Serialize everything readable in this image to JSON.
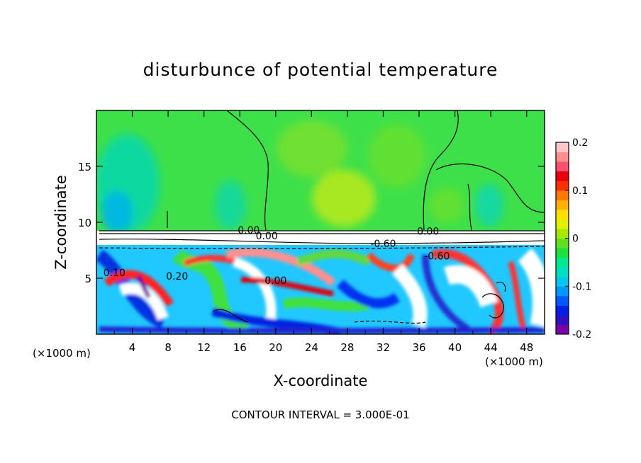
{
  "chart_data": {
    "type": "heatmap",
    "title": "disturbunce of potential temperature",
    "xlabel": "X-coordinate",
    "ylabel": "Z-coordinate",
    "x_unit_label": "(×1000 m)",
    "xlim": [
      0,
      50
    ],
    "ylim": [
      0,
      20
    ],
    "x_ticks": [
      "4",
      "8",
      "12",
      "16",
      "20",
      "24",
      "28",
      "32",
      "36",
      "40",
      "44",
      "48"
    ],
    "x_tick_values": [
      4,
      8,
      12,
      16,
      20,
      24,
      28,
      32,
      36,
      40,
      44,
      48
    ],
    "y_ticks": [
      "5",
      "10",
      "15"
    ],
    "y_tick_values": [
      5,
      10,
      15
    ],
    "colorbar": {
      "range": [
        -0.2,
        0.2
      ],
      "tick_labels": [
        "0.2",
        "0.1",
        "0",
        "-0.1",
        "-0.2"
      ],
      "tick_values": [
        0.2,
        0.1,
        0,
        -0.1,
        -0.2
      ],
      "colors": [
        "#7a00a8",
        "#3010c0",
        "#0020e8",
        "#0058ff",
        "#0098ff",
        "#00c8f0",
        "#00e0c0",
        "#00e890",
        "#20e040",
        "#60e020",
        "#a8e800",
        "#e0f000",
        "#ffe000",
        "#ffb000",
        "#ff7800",
        "#ff3000",
        "#e80010",
        "#ff5070",
        "#ff9090",
        "#ffc8c8"
      ]
    },
    "contour_labels": [
      {
        "text": "0.00",
        "x": 17,
        "z": 9.3
      },
      {
        "text": "0.00",
        "x": 19,
        "z": 8.8
      },
      {
        "text": "0.00",
        "x": 37,
        "z": 9.2
      },
      {
        "text": "-0.60",
        "x": 32,
        "z": 8.1
      },
      {
        "text": "0.00",
        "x": 20,
        "z": 4.8
      },
      {
        "text": "0.20",
        "x": 9,
        "z": 5.2
      },
      {
        "text": "-0.60",
        "x": 38,
        "z": 7.0
      },
      {
        "text": "0.10",
        "x": 2,
        "z": 5.5
      }
    ],
    "contour_interval_text": "CONTOUR INTERVAL = 3.000E-01"
  }
}
